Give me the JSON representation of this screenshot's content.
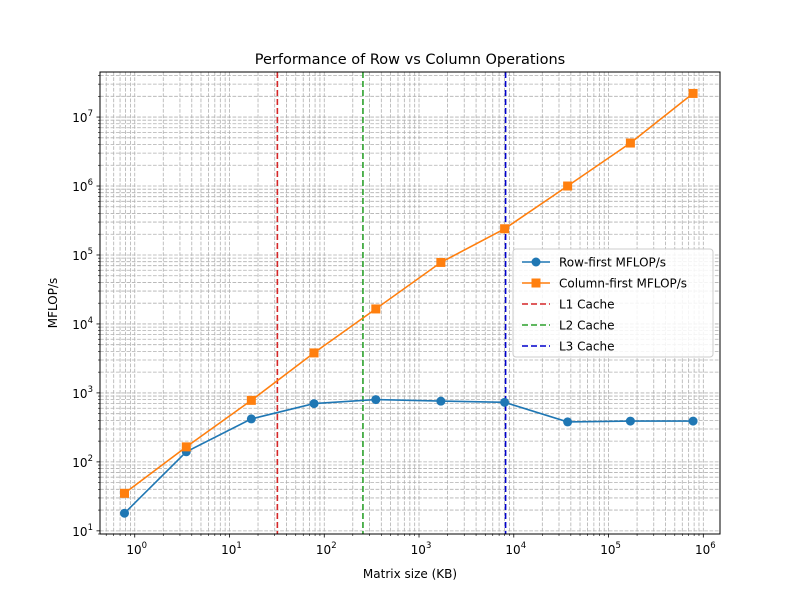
{
  "chart_data": {
    "type": "line",
    "title": "Performance of Row vs Column Operations",
    "xlabel": "Matrix size (KB)",
    "ylabel": "MFLOP/s",
    "xscale": "log",
    "yscale": "log",
    "xlim": [
      0.43,
      1500000
    ],
    "ylim": [
      9,
      45000000
    ],
    "grid": "both (major and minor), dashed",
    "legend_position": "center-right",
    "x_ticks": [
      {
        "base": "10",
        "exp": "0",
        "value": 1
      },
      {
        "base": "10",
        "exp": "1",
        "value": 10
      },
      {
        "base": "10",
        "exp": "2",
        "value": 100
      },
      {
        "base": "10",
        "exp": "3",
        "value": 1000
      },
      {
        "base": "10",
        "exp": "4",
        "value": 10000
      },
      {
        "base": "10",
        "exp": "5",
        "value": 100000
      },
      {
        "base": "10",
        "exp": "6",
        "value": 1000000
      }
    ],
    "y_ticks": [
      {
        "base": "10",
        "exp": "1",
        "value": 10
      },
      {
        "base": "10",
        "exp": "2",
        "value": 100
      },
      {
        "base": "10",
        "exp": "3",
        "value": 1000
      },
      {
        "base": "10",
        "exp": "4",
        "value": 10000
      },
      {
        "base": "10",
        "exp": "5",
        "value": 100000
      },
      {
        "base": "10",
        "exp": "6",
        "value": 1000000
      },
      {
        "base": "10",
        "exp": "7",
        "value": 10000000
      }
    ],
    "x": [
      0.78,
      3.5,
      17,
      78,
      350,
      1700,
      8000,
      37000,
      170000,
      780000
    ],
    "series": [
      {
        "name": "Row-first MFLOP/s",
        "color": "#1f77b4",
        "marker": "circle",
        "values": [
          18,
          140,
          420,
          700,
          800,
          760,
          730,
          380,
          390,
          390
        ]
      },
      {
        "name": "Column-first MFLOP/s",
        "color": "#ff7f0e",
        "marker": "square",
        "values": [
          35,
          165,
          780,
          3800,
          16500,
          78000,
          240000,
          1000000,
          4200000,
          22000000
        ]
      }
    ],
    "reference_lines": [
      {
        "name": "L1 Cache",
        "x": 32,
        "color": "#d62728"
      },
      {
        "name": "L2 Cache",
        "x": 256,
        "color": "#2ca02c"
      },
      {
        "name": "L3 Cache",
        "x": 8192,
        "color": "#0000cc"
      }
    ]
  }
}
